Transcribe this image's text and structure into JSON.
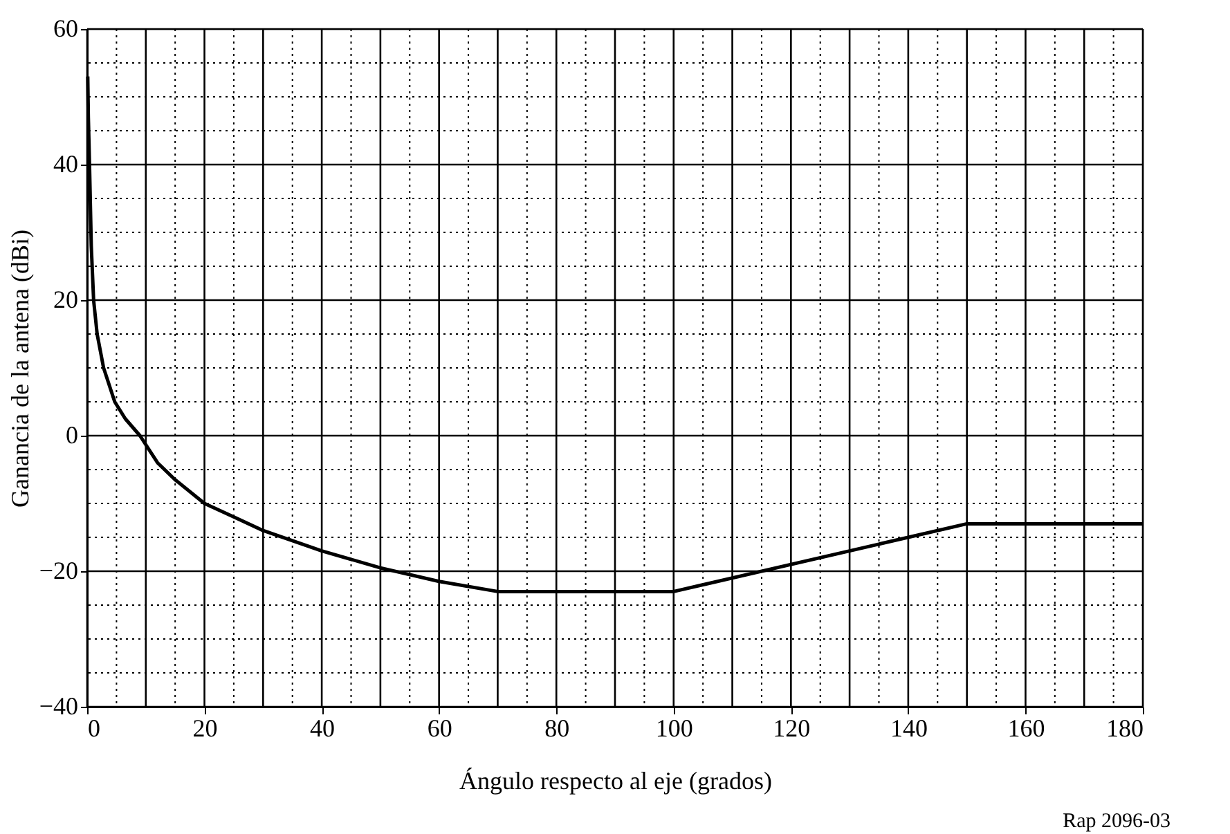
{
  "chart_data": {
    "type": "line",
    "xlabel": "Ángulo respecto al eje (grados)",
    "ylabel": "Ganancia de la antena (dBi)",
    "annotations": [
      "Rap 2096-03"
    ],
    "x": [
      0.1,
      0.2,
      0.4,
      0.7,
      1.1,
      1.7,
      2.8,
      4.7,
      6.5,
      9,
      12,
      15,
      20,
      25,
      30,
      40,
      50,
      60,
      70,
      100,
      150,
      180
    ],
    "series": [
      {
        "color": "#000000",
        "values": [
          53,
          47,
          40,
          28,
          20,
          15,
          10,
          5,
          2.5,
          0,
          -4,
          -6.5,
          -10,
          -12,
          -14,
          -17,
          -19.5,
          -21.5,
          -23,
          -23,
          -13,
          -13
        ]
      }
    ],
    "xlim": [
      0,
      180
    ],
    "ylim": [
      -40,
      60
    ],
    "xticks": [
      0,
      20,
      40,
      60,
      80,
      100,
      120,
      140,
      160,
      180
    ],
    "yticks": [
      -40,
      -20,
      0,
      20,
      40,
      60
    ],
    "grid": true,
    "marker": "none",
    "line_style": "solid"
  }
}
